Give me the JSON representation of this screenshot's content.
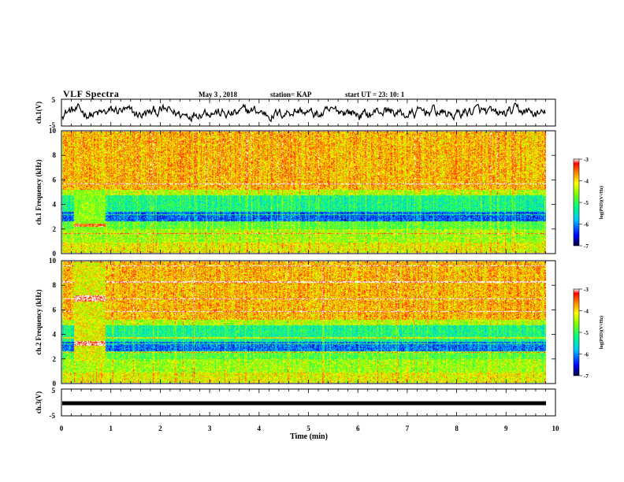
{
  "header": {
    "title": "VLF Spectra",
    "date": "May 3 , 2018",
    "station": "station= KAP",
    "start": "start UT = 23: 10: 1"
  },
  "chart_data": [
    {
      "type": "line",
      "name": "ch1-waveform",
      "ylabel": "ch.1(V)",
      "ylim": [
        -5,
        5
      ],
      "yticks": [
        "5",
        "-5"
      ],
      "xlim": [
        0,
        10
      ],
      "description_of_trace": "noisy waveform varying roughly between -3 and 3 V"
    },
    {
      "type": "heatmap",
      "name": "ch1-spectrogram",
      "ylabel": "ch.1 Frequency (kHz)",
      "ylim": [
        0,
        10
      ],
      "yticks": [
        "0",
        "2",
        "4",
        "6",
        "8",
        "10"
      ],
      "xlim": [
        0,
        9.85
      ],
      "colorbar": {
        "label": "log(PSD)(V²/Hz)",
        "range": [
          -7,
          -3
        ],
        "ticks": [
          "-3",
          "-4",
          "-5",
          "-6",
          "-7"
        ]
      }
    },
    {
      "type": "heatmap",
      "name": "ch2-spectrogram",
      "ylabel": "ch.2 Frequency (kHz)",
      "ylim": [
        0,
        10
      ],
      "yticks": [
        "0",
        "2",
        "4",
        "6",
        "8",
        "10"
      ],
      "xlim": [
        0,
        9.85
      ],
      "colorbar": {
        "label": "log(PSD)(V²/Hz)",
        "range": [
          -7,
          -3
        ],
        "ticks": [
          "-3",
          "-4",
          "-5",
          "-6",
          "-7"
        ]
      }
    },
    {
      "type": "line",
      "name": "ch3-waveform",
      "ylabel": "ch.3(V)",
      "ylim": [
        -5,
        5
      ],
      "yticks": [
        "5",
        "-5"
      ],
      "xlim": [
        0,
        10
      ],
      "description_of_trace": "flat line near -1 V"
    }
  ],
  "xaxis": {
    "label": "Time (min)",
    "ticks": [
      "0",
      "1",
      "2",
      "3",
      "4",
      "5",
      "6",
      "7",
      "8",
      "9",
      "10"
    ]
  }
}
